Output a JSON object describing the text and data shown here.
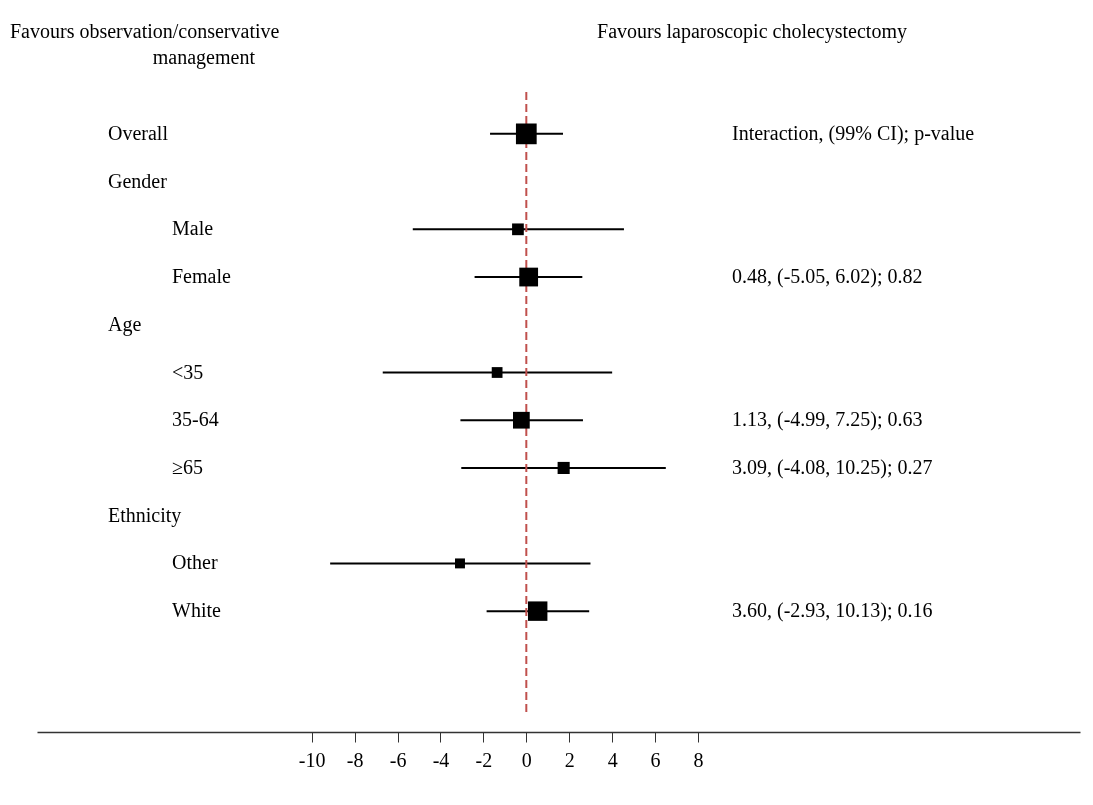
{
  "chart_data": {
    "type": "bubble",
    "orientation": "horizontal",
    "marker": "square",
    "categories": [
      "Overall",
      "Gender",
      "Male",
      "Female",
      "Age",
      "<35",
      "35-64",
      "≥65",
      "Ethnicity",
      "Other",
      "White"
    ],
    "y2_categories": [
      "Interaction, (99% CI); p-value",
      null,
      null,
      "0.48, (-5.05, 6.02); 0.82",
      null,
      null,
      "1.13, (-4.99, 7.25); 0.63",
      "3.09, (-4.08, 10.25); 0.27",
      null,
      null,
      "3.60, (-2.93, 10.13); 0.16"
    ],
    "values": [
      0.0,
      null,
      -0.39,
      0.11,
      null,
      -1.36,
      -0.23,
      1.74,
      null,
      -3.09,
      0.53
    ],
    "errors": [
      [
        -1.69,
        1.71
      ],
      null,
      [
        -5.29,
        4.55
      ],
      [
        -2.41,
        2.61
      ],
      null,
      [
        -6.69,
        4.0
      ],
      [
        -3.07,
        2.64
      ],
      [
        -3.03,
        6.5
      ],
      null,
      [
        -9.14,
        2.99
      ],
      [
        -1.85,
        2.93
      ]
    ],
    "sizes": [
      1,
      null,
      0.32,
      0.82,
      null,
      0.27,
      0.65,
      0.34,
      null,
      0.23,
      0.88
    ],
    "color": "#000000",
    "xlim": [
      -22.8,
      25.8
    ],
    "xticks": [
      -10,
      -8,
      -6,
      -4,
      -2,
      0,
      2,
      4,
      6,
      8
    ],
    "ref_lines": [
      {
        "axis": "x",
        "value": 0,
        "color": "#c0504d",
        "line_style": "dashed"
      }
    ],
    "annotations": [
      "Favours observation/conservative management",
      "Favours laparoscopic cholecystectomy"
    ]
  }
}
